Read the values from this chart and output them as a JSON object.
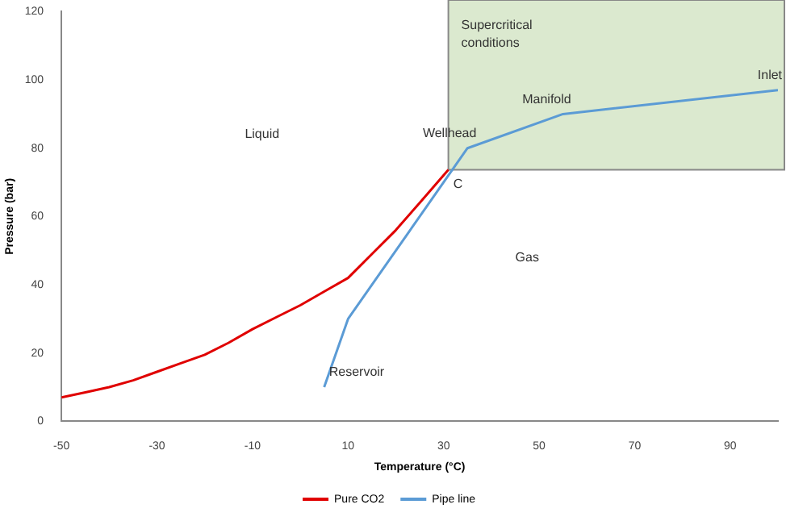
{
  "chart_data": {
    "type": "line",
    "xlabel": "Temperature (°C)",
    "ylabel": "Pressure (bar)",
    "xlim": [
      -50,
      100
    ],
    "xticks": [
      -50,
      -30,
      -10,
      10,
      30,
      50,
      70,
      90
    ],
    "ylim": [
      0,
      120
    ],
    "yticks": [
      0,
      20,
      40,
      60,
      80,
      100,
      120
    ],
    "grid": false,
    "legend": "bottom",
    "marker": "none",
    "line_style": "solid",
    "series": [
      {
        "name": "Pure CO2",
        "color": "#e00000",
        "x": [
          -50,
          -45,
          -40,
          -35,
          -30,
          -25,
          -20,
          -15,
          -10,
          -5,
          0,
          5,
          10,
          15,
          20,
          25,
          31
        ],
        "values": [
          7,
          8.5,
          10,
          12,
          14.5,
          17,
          19.5,
          23,
          27,
          30.5,
          34,
          38,
          42,
          49,
          56,
          64,
          73.7
        ]
      },
      {
        "name": "Pipe line",
        "color": "#5b9bd5",
        "x": [
          5,
          10,
          35,
          55,
          100
        ],
        "values": [
          10,
          30,
          80,
          90,
          97
        ]
      }
    ],
    "bands": [
      {
        "axis": "x",
        "from": 31,
        "to": 100,
        "label": "Supercritical\nconditions",
        "color": "#dbe9cf"
      }
    ],
    "annotations": [
      "Liquid",
      "Gas",
      {
        "text": "Reservoir",
        "x": 5,
        "y": 10
      },
      {
        "text": "Wellhead",
        "x": 35,
        "y": 80
      },
      {
        "text": "Manifold",
        "x": 55,
        "y": 90
      },
      {
        "text": "Inlet",
        "x": 100,
        "y": 97
      },
      {
        "text": "C",
        "x": 31,
        "y": 73.7
      }
    ]
  }
}
